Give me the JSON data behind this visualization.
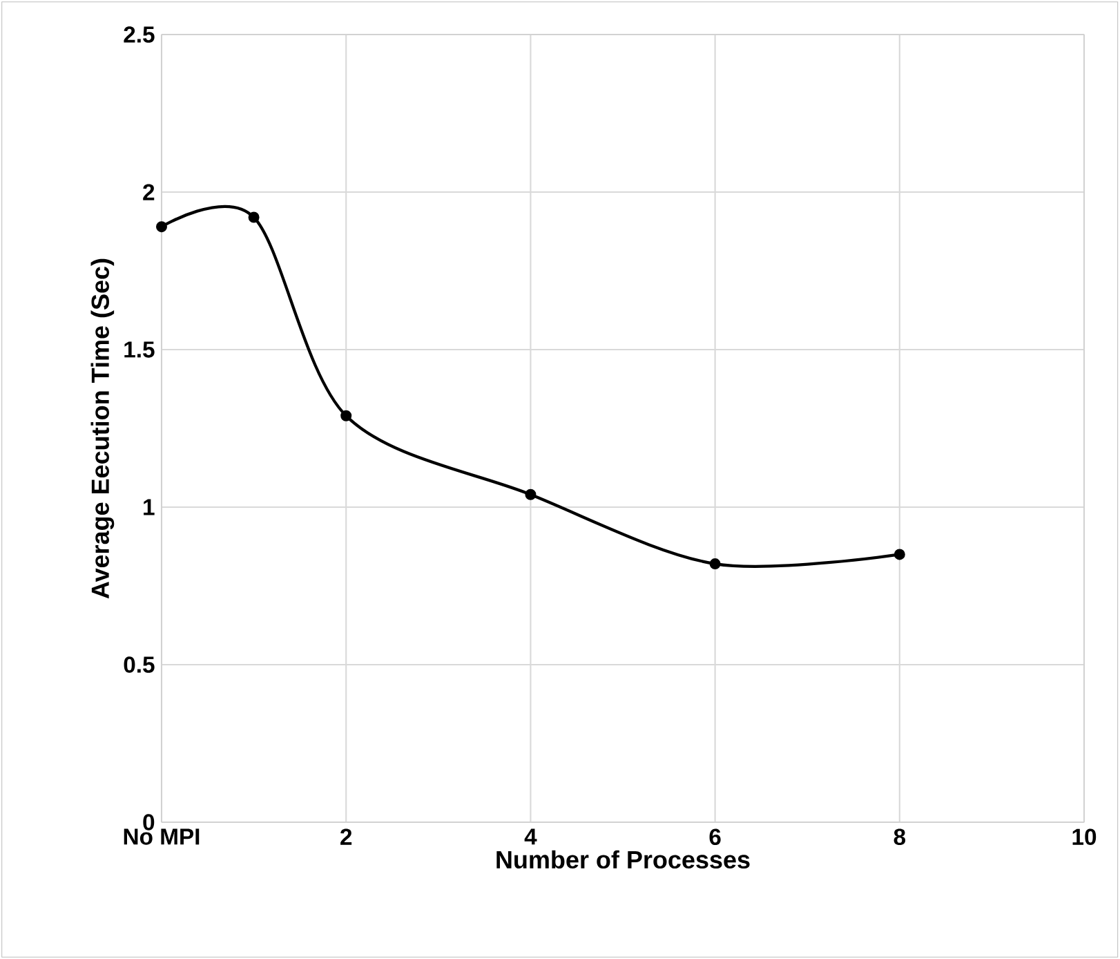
{
  "chart_data": {
    "type": "line",
    "xlabel": "Number of Processes",
    "ylabel": "Average Eecution Time (Sec)",
    "x": [
      0,
      1,
      2,
      4,
      6,
      8
    ],
    "series": [
      {
        "color": "#000000",
        "values": [
          1.89,
          1.92,
          1.29,
          1.04,
          0.82,
          0.85
        ]
      }
    ],
    "xlim": [
      0,
      10
    ],
    "xticks": [
      {
        "value": 0,
        "label": "No MPI"
      },
      2,
      4,
      6,
      8,
      10
    ],
    "ylim": [
      0,
      2.5
    ],
    "yticks": [
      0,
      0.5,
      1,
      1.5,
      2,
      2.5
    ],
    "grid": true,
    "marker": "circle",
    "line_style": "solid"
  }
}
